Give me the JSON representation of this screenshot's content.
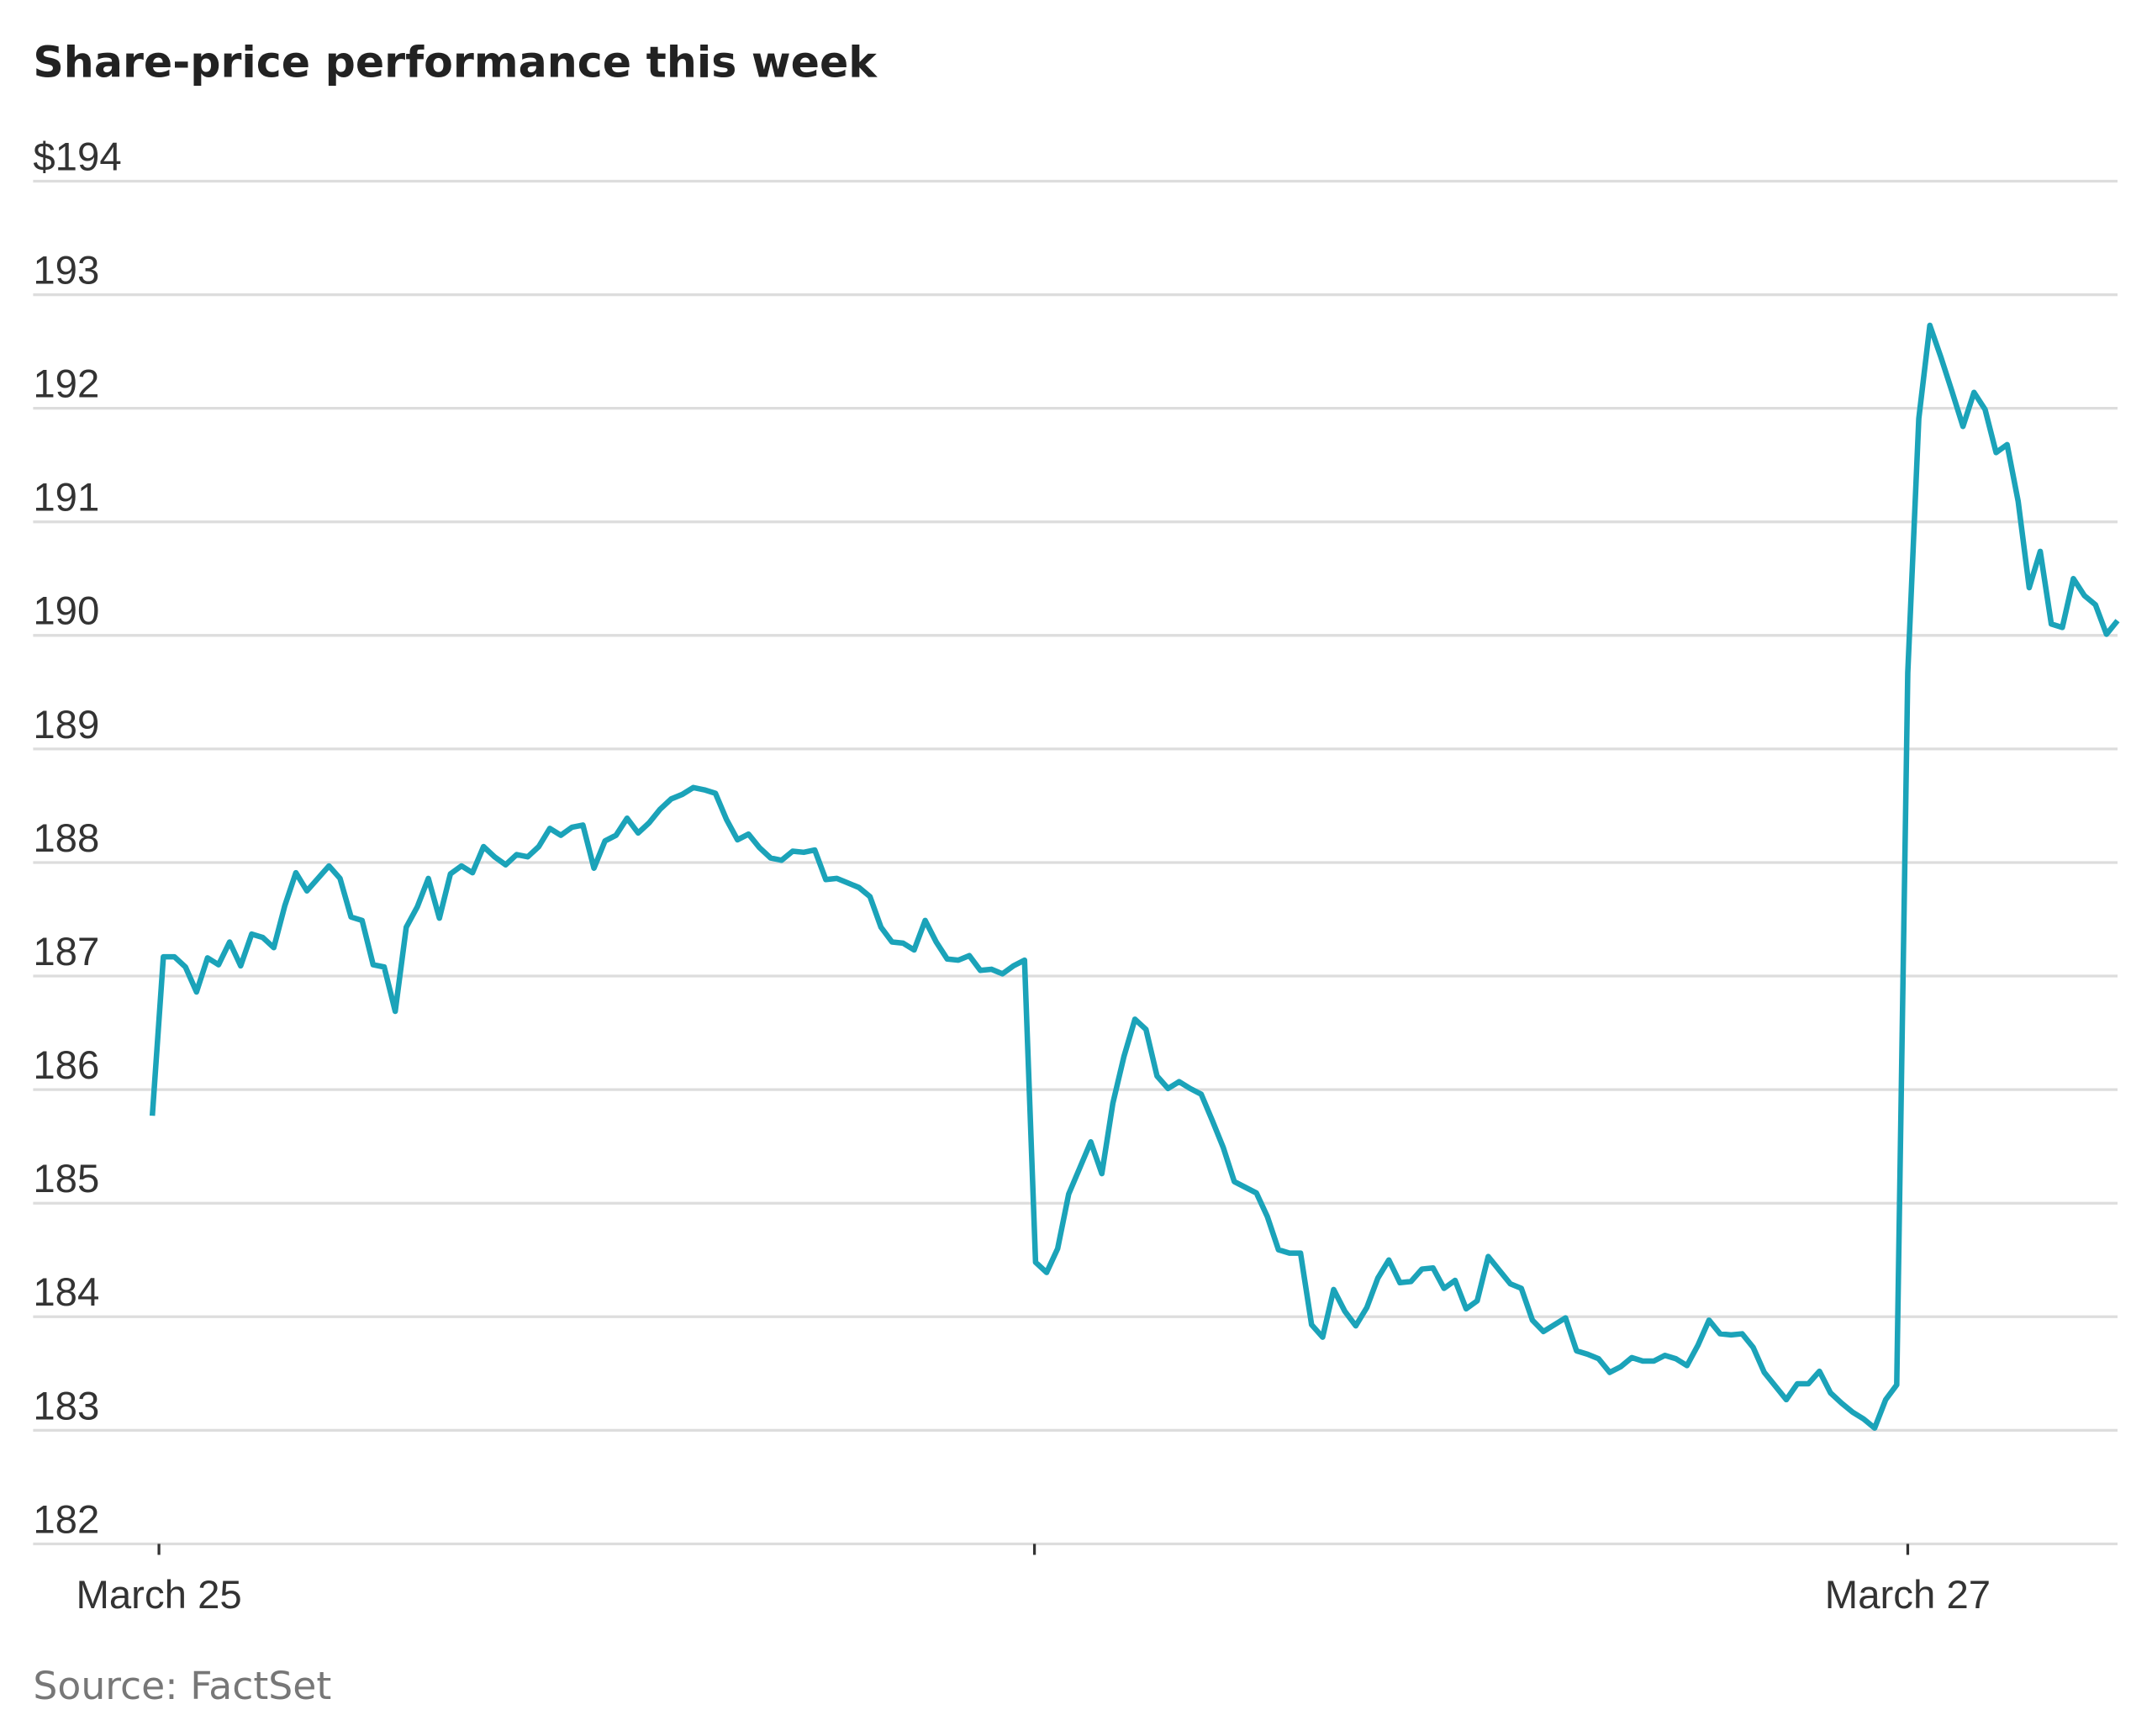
{
  "chart_data": {
    "type": "line",
    "title": "Share-price performance this week",
    "source": "Source: FactSet",
    "color": "#1ba3b9",
    "grid": true,
    "ylim": [
      182,
      194
    ],
    "yticks": [
      182,
      183,
      184,
      185,
      186,
      187,
      188,
      189,
      190,
      191,
      192,
      193,
      {
        "value": 194,
        "label": "$194"
      }
    ],
    "xlim": [
      -10.8,
      178
    ],
    "xticks": [
      {
        "value": 0.6,
        "label": "March 25"
      },
      {
        "value": 79.9,
        "label": null
      },
      {
        "value": 159,
        "label": "March 27"
      }
    ],
    "values": [
      185.77,
      187.17,
      187.17,
      187.08,
      186.86,
      187.16,
      187.1,
      187.3,
      187.09,
      187.37,
      187.34,
      187.25,
      187.62,
      187.91,
      187.75,
      187.86,
      187.97,
      187.86,
      187.52,
      187.49,
      187.1,
      187.08,
      186.69,
      187.43,
      187.61,
      187.86,
      187.51,
      187.9,
      187.97,
      187.91,
      188.14,
      188.05,
      187.98,
      188.07,
      188.05,
      188.14,
      188.3,
      188.24,
      188.31,
      188.33,
      187.95,
      188.19,
      188.24,
      188.39,
      188.26,
      188.35,
      188.47,
      188.56,
      188.6,
      188.66,
      188.64,
      188.61,
      188.38,
      188.2,
      188.25,
      188.13,
      188.04,
      188.02,
      188.1,
      188.09,
      188.11,
      187.85,
      187.86,
      187.82,
      187.78,
      187.7,
      187.43,
      187.3,
      187.29,
      187.23,
      187.49,
      187.3,
      187.15,
      187.14,
      187.18,
      187.05,
      187.06,
      187.02,
      187.09,
      187.14,
      184.48,
      184.39,
      184.6,
      185.08,
      185.31,
      185.54,
      185.26,
      185.88,
      186.29,
      186.62,
      186.53,
      186.12,
      186.01,
      186.07,
      186.01,
      185.96,
      185.73,
      185.49,
      185.19,
      185.14,
      185.09,
      184.88,
      184.59,
      184.56,
      184.56,
      183.93,
      183.82,
      184.24,
      184.05,
      183.92,
      184.08,
      184.34,
      184.5,
      184.3,
      184.31,
      184.42,
      184.43,
      184.25,
      184.32,
      184.07,
      184.14,
      184.53,
      184.41,
      184.29,
      184.25,
      183.97,
      183.87,
      183.93,
      183.99,
      183.7,
      183.67,
      183.63,
      183.51,
      183.56,
      183.64,
      183.61,
      183.61,
      183.66,
      183.63,
      183.57,
      183.75,
      183.97,
      183.85,
      183.84,
      183.85,
      183.73,
      183.51,
      183.39,
      183.27,
      183.41,
      183.41,
      183.52,
      183.33,
      183.24,
      183.16,
      183.1,
      183.02,
      183.27,
      183.4,
      189.67,
      191.91,
      192.73,
      192.45,
      192.15,
      191.84,
      192.14,
      191.99,
      191.61,
      191.68,
      191.18,
      190.42,
      190.74,
      190.1,
      190.07,
      190.5,
      190.35,
      190.27,
      190.01,
      190.13
    ]
  }
}
